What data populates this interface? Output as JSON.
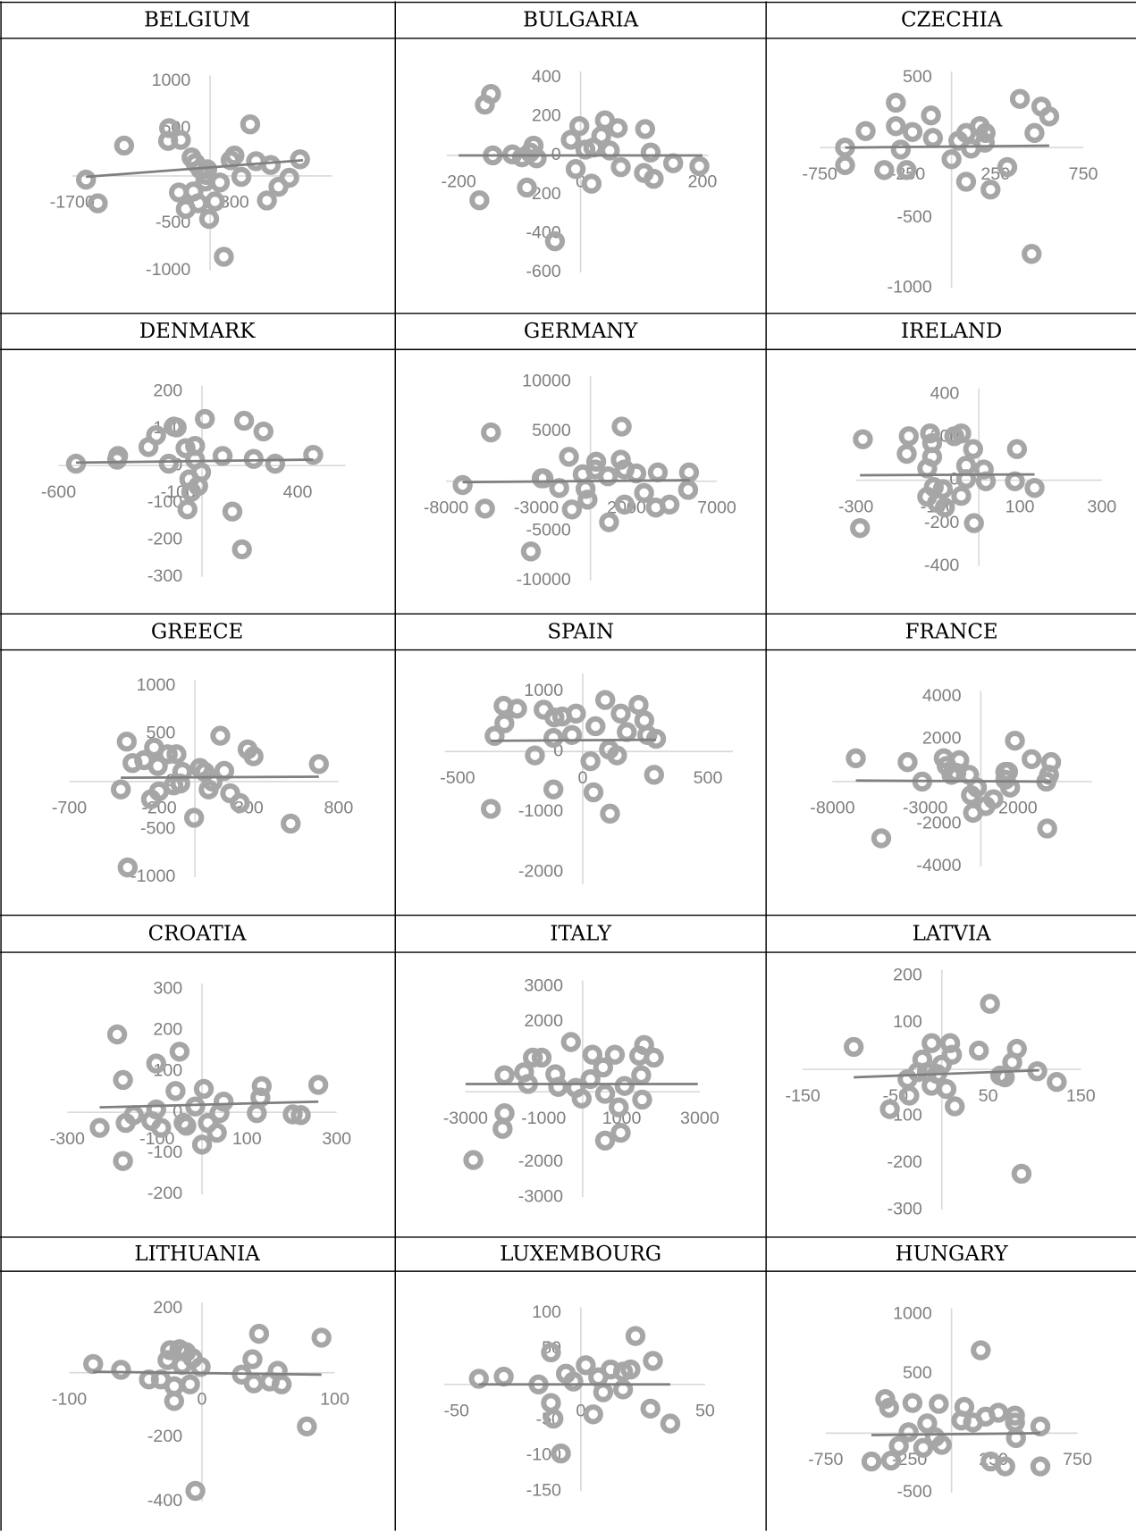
{
  "chart_data": [
    {
      "type": "scatter",
      "title": "BELGIUM",
      "color": "#a6a6a6",
      "xlim": [
        -1700,
        1500
      ],
      "ylim": [
        -1000,
        1000
      ],
      "xticks": [
        -1700,
        300
      ],
      "yticks": [
        -1000,
        -500,
        500,
        1000
      ],
      "x": [
        -1530,
        -1385,
        -1060,
        -506,
        -518,
        -361,
        -229,
        -181,
        -120,
        -36,
        -60,
        -385,
        -205,
        -300,
        -145,
        -48,
        -12,
        60,
        120,
        169,
        300,
        385,
        494,
        566,
        700,
        747,
        843,
        976,
        1108,
        253
      ],
      "y": [
        -40,
        -290,
        320,
        505,
        370,
        380,
        195,
        135,
        70,
        70,
        -60,
        -175,
        -165,
        -350,
        -290,
        10,
        -455,
        -270,
        -70,
        -855,
        215,
        -10,
        545,
        155,
        -260,
        115,
        -115,
        -20,
        175,
        165
      ],
      "trendline": {
        "x": [
          -1530,
          1145
        ],
        "y": [
          -10,
          165
        ],
        "color": "#7f7f7f"
      }
    },
    {
      "type": "scatter",
      "title": "BULGARIA",
      "color": "#a6a6a6",
      "xlim": [
        -220,
        210
      ],
      "ylim": [
        -600,
        400
      ],
      "xticks": [
        -200,
        0,
        200
      ],
      "yticks": [
        -600,
        -400,
        -200,
        0,
        200,
        400
      ],
      "x": [
        -166,
        -157,
        -147,
        -144,
        -112,
        -96,
        -88,
        -83,
        -77,
        -72,
        -42,
        -16,
        -8,
        -2,
        8,
        18,
        21,
        34,
        40,
        48,
        61,
        66,
        106,
        115,
        104,
        120,
        152,
        195
      ],
      "y": [
        -230,
        260,
        315,
        0,
        5,
        -10,
        -165,
        15,
        50,
        -15,
        -440,
        80,
        -70,
        150,
        30,
        -145,
        40,
        100,
        180,
        25,
        140,
        -60,
        135,
        15,
        -90,
        -120,
        -40,
        -55
      ],
      "trendline": {
        "x": [
          -200,
          200
        ],
        "y": [
          0,
          0
        ],
        "color": "#7f7f7f"
      }
    },
    {
      "type": "scatter",
      "title": "CZECHIA",
      "color": "#a6a6a6",
      "xlim": [
        -750,
        750
      ],
      "ylim": [
        -1000,
        500
      ],
      "xticks": [
        -750,
        -250,
        250,
        750
      ],
      "yticks": [
        -1000,
        -500,
        500
      ],
      "x": [
        -606,
        -606,
        -489,
        -317,
        -317,
        -383,
        -289,
        -222,
        -117,
        -106,
        -256,
        0,
        39,
        83,
        111,
        161,
        189,
        83,
        222,
        317,
        389,
        472,
        511,
        556,
        456,
        194
      ],
      "y": [
        0,
        -125,
        118,
        320,
        153,
        -160,
        -14,
        111,
        229,
        69,
        -160,
        -83,
        49,
        104,
        -7,
        153,
        35,
        -243,
        -299,
        -139,
        347,
        104,
        292,
        222,
        -757,
        104
      ],
      "trendline": {
        "x": [
          -606,
          556
        ],
        "y": [
          0,
          14
        ],
        "color": "#7f7f7f"
      }
    },
    {
      "type": "scatter",
      "title": "DENMARK",
      "color": "#a6a6a6",
      "xlim": [
        -600,
        600
      ],
      "ylim": [
        -300,
        200
      ],
      "xticks": [
        -600,
        -100,
        400
      ],
      "yticks": [
        -300,
        -200,
        -100,
        0,
        100,
        200
      ],
      "x": [
        -527,
        -355,
        -351,
        -224,
        -192,
        -118,
        -106,
        -139,
        -69,
        -61,
        -53,
        -45,
        -29,
        -16,
        -4,
        12,
        86,
        127,
        167,
        176,
        216,
        257,
        306,
        465,
        -29
      ],
      "y": [
        5,
        16,
        26,
        50,
        82,
        105,
        103,
        5,
        47,
        -118,
        -37,
        -71,
        53,
        -55,
        -18,
        126,
        26,
        -124,
        -226,
        121,
        18,
        92,
        5,
        29,
        16
      ],
      "trendline": {
        "x": [
          -527,
          465
        ],
        "y": [
          8,
          16
        ],
        "color": "#7f7f7f"
      }
    },
    {
      "type": "scatter",
      "title": "GERMANY",
      "color": "#a6a6a6",
      "xlim": [
        -8000,
        7000
      ],
      "ylim": [
        -10000,
        10000
      ],
      "xticks": [
        -8000,
        -3000,
        2000,
        7000
      ],
      "yticks": [
        -10000,
        -5000,
        5000,
        10000
      ],
      "x": [
        -7080,
        -5840,
        -5510,
        -3300,
        -2700,
        -2600,
        -1730,
        -1190,
        -1030,
        -430,
        -270,
        -160,
        270,
        1030,
        320,
        1730,
        1680,
        1890,
        2540,
        1890,
        2970,
        3730,
        3620,
        4380,
        5410,
        5460,
        970
      ],
      "y": [
        -390,
        -2750,
        4900,
        -7060,
        290,
        290,
        -690,
        2450,
        -2840,
        690,
        -780,
        -1860,
        1180,
        -4120,
        1960,
        5490,
        2160,
        1180,
        780,
        -2350,
        -1180,
        880,
        -2650,
        -2350,
        -880,
        880,
        490
      ],
      "trendline": {
        "x": [
          -7080,
          5510
        ],
        "y": [
          -100,
          100
        ],
        "color": "#7f7f7f"
      }
    },
    {
      "type": "scatter",
      "title": "IRELAND",
      "color": "#a6a6a6",
      "xlim": [
        -300,
        300
      ],
      "ylim": [
        -400,
        400
      ],
      "xticks": [
        -300,
        -100,
        100,
        300
      ],
      "yticks": [
        -400,
        -200,
        0,
        200,
        400
      ],
      "x": [
        -290,
        -283,
        -176,
        -171,
        -126,
        -119,
        -114,
        -114,
        -110,
        -126,
        -102,
        -88,
        -83,
        -60,
        -43,
        -31,
        -14,
        -31,
        -12,
        12,
        17,
        88,
        93,
        136,
        -43
      ],
      "y": [
        -223,
        191,
        123,
        205,
        55,
        218,
        173,
        109,
        -32,
        -77,
        -105,
        -41,
        -127,
        205,
        218,
        5,
        145,
        68,
        -200,
        50,
        -5,
        -5,
        145,
        -36,
        -73
      ],
      "trendline": {
        "x": [
          -290,
          136
        ],
        "y": [
          23,
          27
        ],
        "color": "#7f7f7f"
      }
    },
    {
      "type": "scatter",
      "title": "GREECE",
      "color": "#a6a6a6",
      "xlim": [
        -700,
        800
      ],
      "ylim": [
        -1000,
        1000
      ],
      "xticks": [
        -700,
        -200,
        300,
        800
      ],
      "yticks": [
        -1000,
        -500,
        0,
        500,
        1000
      ],
      "x": [
        -413,
        -380,
        -375,
        -348,
        -283,
        -245,
        -228,
        -207,
        -201,
        -152,
        -120,
        -103,
        -82,
        -71,
        -5,
        27,
        76,
        98,
        141,
        163,
        196,
        250,
        293,
        326,
        533,
        690,
        54
      ],
      "y": [
        -82,
        418,
        -898,
        194,
        224,
        -184,
        357,
        163,
        -102,
        286,
        -41,
        286,
        -20,
        102,
        -378,
        143,
        -82,
        0,
        480,
        112,
        -122,
        -224,
        337,
        265,
        -439,
        184,
        102
      ],
      "trendline": {
        "x": [
          -413,
          690
        ],
        "y": [
          41,
          51
        ],
        "color": "#7f7f7f"
      }
    },
    {
      "type": "scatter",
      "title": "SPAIN",
      "color": "#a6a6a6",
      "xlim": [
        -550,
        600
      ],
      "ylim": [
        -2200,
        1200
      ],
      "xticks": [
        -500,
        0,
        500
      ],
      "yticks": [
        -2000,
        -1000,
        0,
        1000
      ],
      "x": [
        -367,
        -352,
        -316,
        -313,
        -262,
        -191,
        -156,
        -117,
        -117,
        -113,
        -82,
        -43,
        -27,
        31,
        43,
        51,
        90,
        105,
        109,
        137,
        152,
        176,
        223,
        258,
        285,
        293,
        246
      ],
      "y": [
        -952,
        258,
        758,
        468,
        710,
        -65,
        694,
        -629,
        226,
        565,
        581,
        274,
        629,
        -161,
        -677,
        419,
        855,
        32,
        -1032,
        -65,
        629,
        323,
        774,
        274,
        -387,
        210,
        516
      ],
      "trendline": {
        "x": [
          -367,
          293
        ],
        "y": [
          177,
          194
        ],
        "color": "#7f7f7f"
      }
    },
    {
      "type": "scatter",
      "title": "FRANCE",
      "color": "#a6a6a6",
      "xlim": [
        -8000,
        6000
      ],
      "ylim": [
        -4000,
        4000
      ],
      "xticks": [
        -8000,
        -3000,
        2000
      ],
      "yticks": [
        -4000,
        -2000,
        2000,
        4000
      ],
      "x": [
        -6740,
        -5370,
        -3950,
        -3160,
        -2000,
        -1840,
        -1160,
        -1320,
        -1580,
        -630,
        -530,
        -420,
        -210,
        260,
        680,
        1320,
        1470,
        1580,
        1840,
        2740,
        3530,
        3580,
        3790,
        3680,
        1320
      ],
      "y": [
        1100,
        -2670,
        920,
        0,
        1100,
        740,
        1010,
        410,
        320,
        320,
        -640,
        -1470,
        -280,
        -1150,
        -830,
        90,
        460,
        -280,
        1930,
        1060,
        0,
        -2210,
        920,
        320,
        460
      ],
      "trendline": {
        "x": [
          -6740,
          3790
        ],
        "y": [
          50,
          0
        ],
        "color": "#7f7f7f"
      }
    },
    {
      "type": "scatter",
      "title": "CROATIA",
      "color": "#a6a6a6",
      "xlim": [
        -300,
        300
      ],
      "ylim": [
        -200,
        300
      ],
      "xticks": [
        -300,
        -100,
        100,
        300
      ],
      "yticks": [
        -200,
        -100,
        0,
        100,
        200,
        300
      ],
      "x": [
        -228,
        -189,
        -176,
        -176,
        -170,
        -152,
        -113,
        -102,
        -102,
        -91,
        -59,
        -50,
        -41,
        -35,
        -15,
        0,
        4,
        13,
        33,
        39,
        48,
        122,
        130,
        133,
        202,
        220,
        259
      ],
      "y": [
        -38,
        190,
        79,
        -119,
        -26,
        -7,
        -21,
        119,
        7,
        -38,
        52,
        148,
        -26,
        -33,
        14,
        -79,
        57,
        -26,
        -50,
        -2,
        26,
        -2,
        36,
        64,
        -5,
        -7,
        67
      ],
      "trendline": {
        "x": [
          -228,
          259
        ],
        "y": [
          12,
          26
        ],
        "color": "#7f7f7f"
      }
    },
    {
      "type": "scatter",
      "title": "ITALY",
      "color": "#a6a6a6",
      "xlim": [
        -3000,
        3000
      ],
      "ylim": [
        -3000,
        3000
      ],
      "xticks": [
        -3000,
        -1000,
        1000,
        3000
      ],
      "yticks": [
        -3000,
        -2000,
        2000,
        3000
      ],
      "x": [
        -2800,
        -2050,
        -2000,
        -2000,
        -1500,
        -1400,
        -1275,
        -1050,
        -700,
        -625,
        -300,
        -175,
        -25,
        200,
        250,
        525,
        575,
        575,
        825,
        925,
        975,
        1075,
        1450,
        1500,
        1525,
        1575,
        1825
      ],
      "y": [
        -1944,
        -1056,
        -611,
        472,
        556,
        222,
        972,
        972,
        500,
        139,
        1417,
        111,
        -194,
        361,
        1056,
        694,
        -1389,
        -56,
        1056,
        -444,
        -1167,
        167,
        1028,
        472,
        -222,
        1333,
        972
      ],
      "trendline": {
        "x": [
          -3000,
          2950
        ],
        "y": [
          222,
          222
        ],
        "color": "#7f7f7f"
      }
    },
    {
      "type": "scatter",
      "title": "LATVIA",
      "color": "#a6a6a6",
      "xlim": [
        -150,
        150
      ],
      "ylim": [
        -300,
        200
      ],
      "xticks": [
        -150,
        -50,
        50,
        150
      ],
      "yticks": [
        -300,
        -200,
        -100,
        100,
        200
      ],
      "x": [
        -95,
        -56,
        -37,
        -35,
        -26,
        -21,
        -16,
        -11,
        -11,
        -5,
        0,
        5,
        9,
        11,
        14,
        40,
        52,
        63,
        68,
        76,
        81,
        86,
        103,
        124
      ],
      "y": [
        48,
        -85,
        -21,
        -56,
        -6,
        21,
        -6,
        56,
        -35,
        -10,
        10,
        -42,
        56,
        31,
        -79,
        40,
        140,
        -13,
        -17,
        15,
        44,
        -223,
        -4,
        -27
      ],
      "trendline": {
        "x": [
          -95,
          105
        ],
        "y": [
          -17,
          -2
        ],
        "color": "#7f7f7f"
      }
    },
    {
      "type": "scatter",
      "title": "LITHUANIA",
      "color": "#a6a6a6",
      "xlim": [
        -100,
        100
      ],
      "ylim": [
        -400,
        200
      ],
      "xticks": [
        -100,
        0,
        100
      ],
      "yticks": [
        -400,
        -200,
        200
      ],
      "x": [
        -82,
        -61,
        -40,
        -31,
        -26,
        -24,
        -21,
        -21,
        -17,
        -15,
        -12,
        -9,
        -7,
        -5,
        -1,
        30,
        38,
        39,
        43,
        51,
        57,
        60,
        79,
        90
      ],
      "y": [
        27,
        9,
        -21,
        -21,
        39,
        70,
        -42,
        -88,
        73,
        24,
        64,
        -36,
        45,
        -367,
        18,
        -6,
        42,
        -33,
        121,
        -27,
        6,
        -36,
        -167,
        109
      ],
      "trendline": {
        "x": [
          -82,
          90
        ],
        "y": [
          3,
          -6
        ],
        "color": "#7f7f7f"
      }
    },
    {
      "type": "scatter",
      "title": "LUXEMBOURG",
      "color": "#a6a6a6",
      "xlim": [
        -55,
        50
      ],
      "ylim": [
        -150,
        100
      ],
      "xticks": [
        -50,
        0,
        50
      ],
      "yticks": [
        -150,
        -100,
        -50,
        50,
        100
      ],
      "x": [
        -41,
        -31,
        -17,
        -12,
        -12,
        -11,
        -8,
        -6,
        -3,
        2,
        5,
        7,
        9,
        12,
        17,
        17,
        20,
        22,
        28,
        29,
        36
      ],
      "y": [
        8,
        11,
        0,
        45,
        -26,
        -48,
        -97,
        15,
        4,
        27,
        -42,
        10,
        -11,
        21,
        18,
        -7,
        21,
        68,
        -34,
        33,
        -55
      ],
      "trendline": {
        "x": [
          -41,
          36
        ],
        "y": [
          0,
          0
        ],
        "color": "#7f7f7f"
      }
    },
    {
      "type": "scatter",
      "title": "HUNGARY",
      "color": "#a6a6a6",
      "xlim": [
        -750,
        750
      ],
      "ylim": [
        -500,
        1000
      ],
      "xticks": [
        -750,
        -250,
        250,
        750
      ],
      "yticks": [
        -500,
        500,
        1000
      ],
      "x": [
        -477,
        -395,
        -372,
        -360,
        -314,
        -256,
        -233,
        -169,
        -145,
        -99,
        -76,
        -58,
        58,
        76,
        128,
        174,
        203,
        233,
        279,
        320,
        378,
        384,
        529,
        529,
        378
      ],
      "y": [
        -238,
        287,
        213,
        -230,
        -107,
        8,
        254,
        -123,
        82,
        -33,
        246,
        -98,
        107,
        221,
        90,
        697,
        139,
        -238,
        172,
        -279,
        90,
        -41,
        57,
        -279,
        148
      ],
      "trendline": {
        "x": [
          -477,
          529
        ],
        "y": [
          -16,
          0
        ],
        "color": "#7f7f7f"
      }
    }
  ]
}
